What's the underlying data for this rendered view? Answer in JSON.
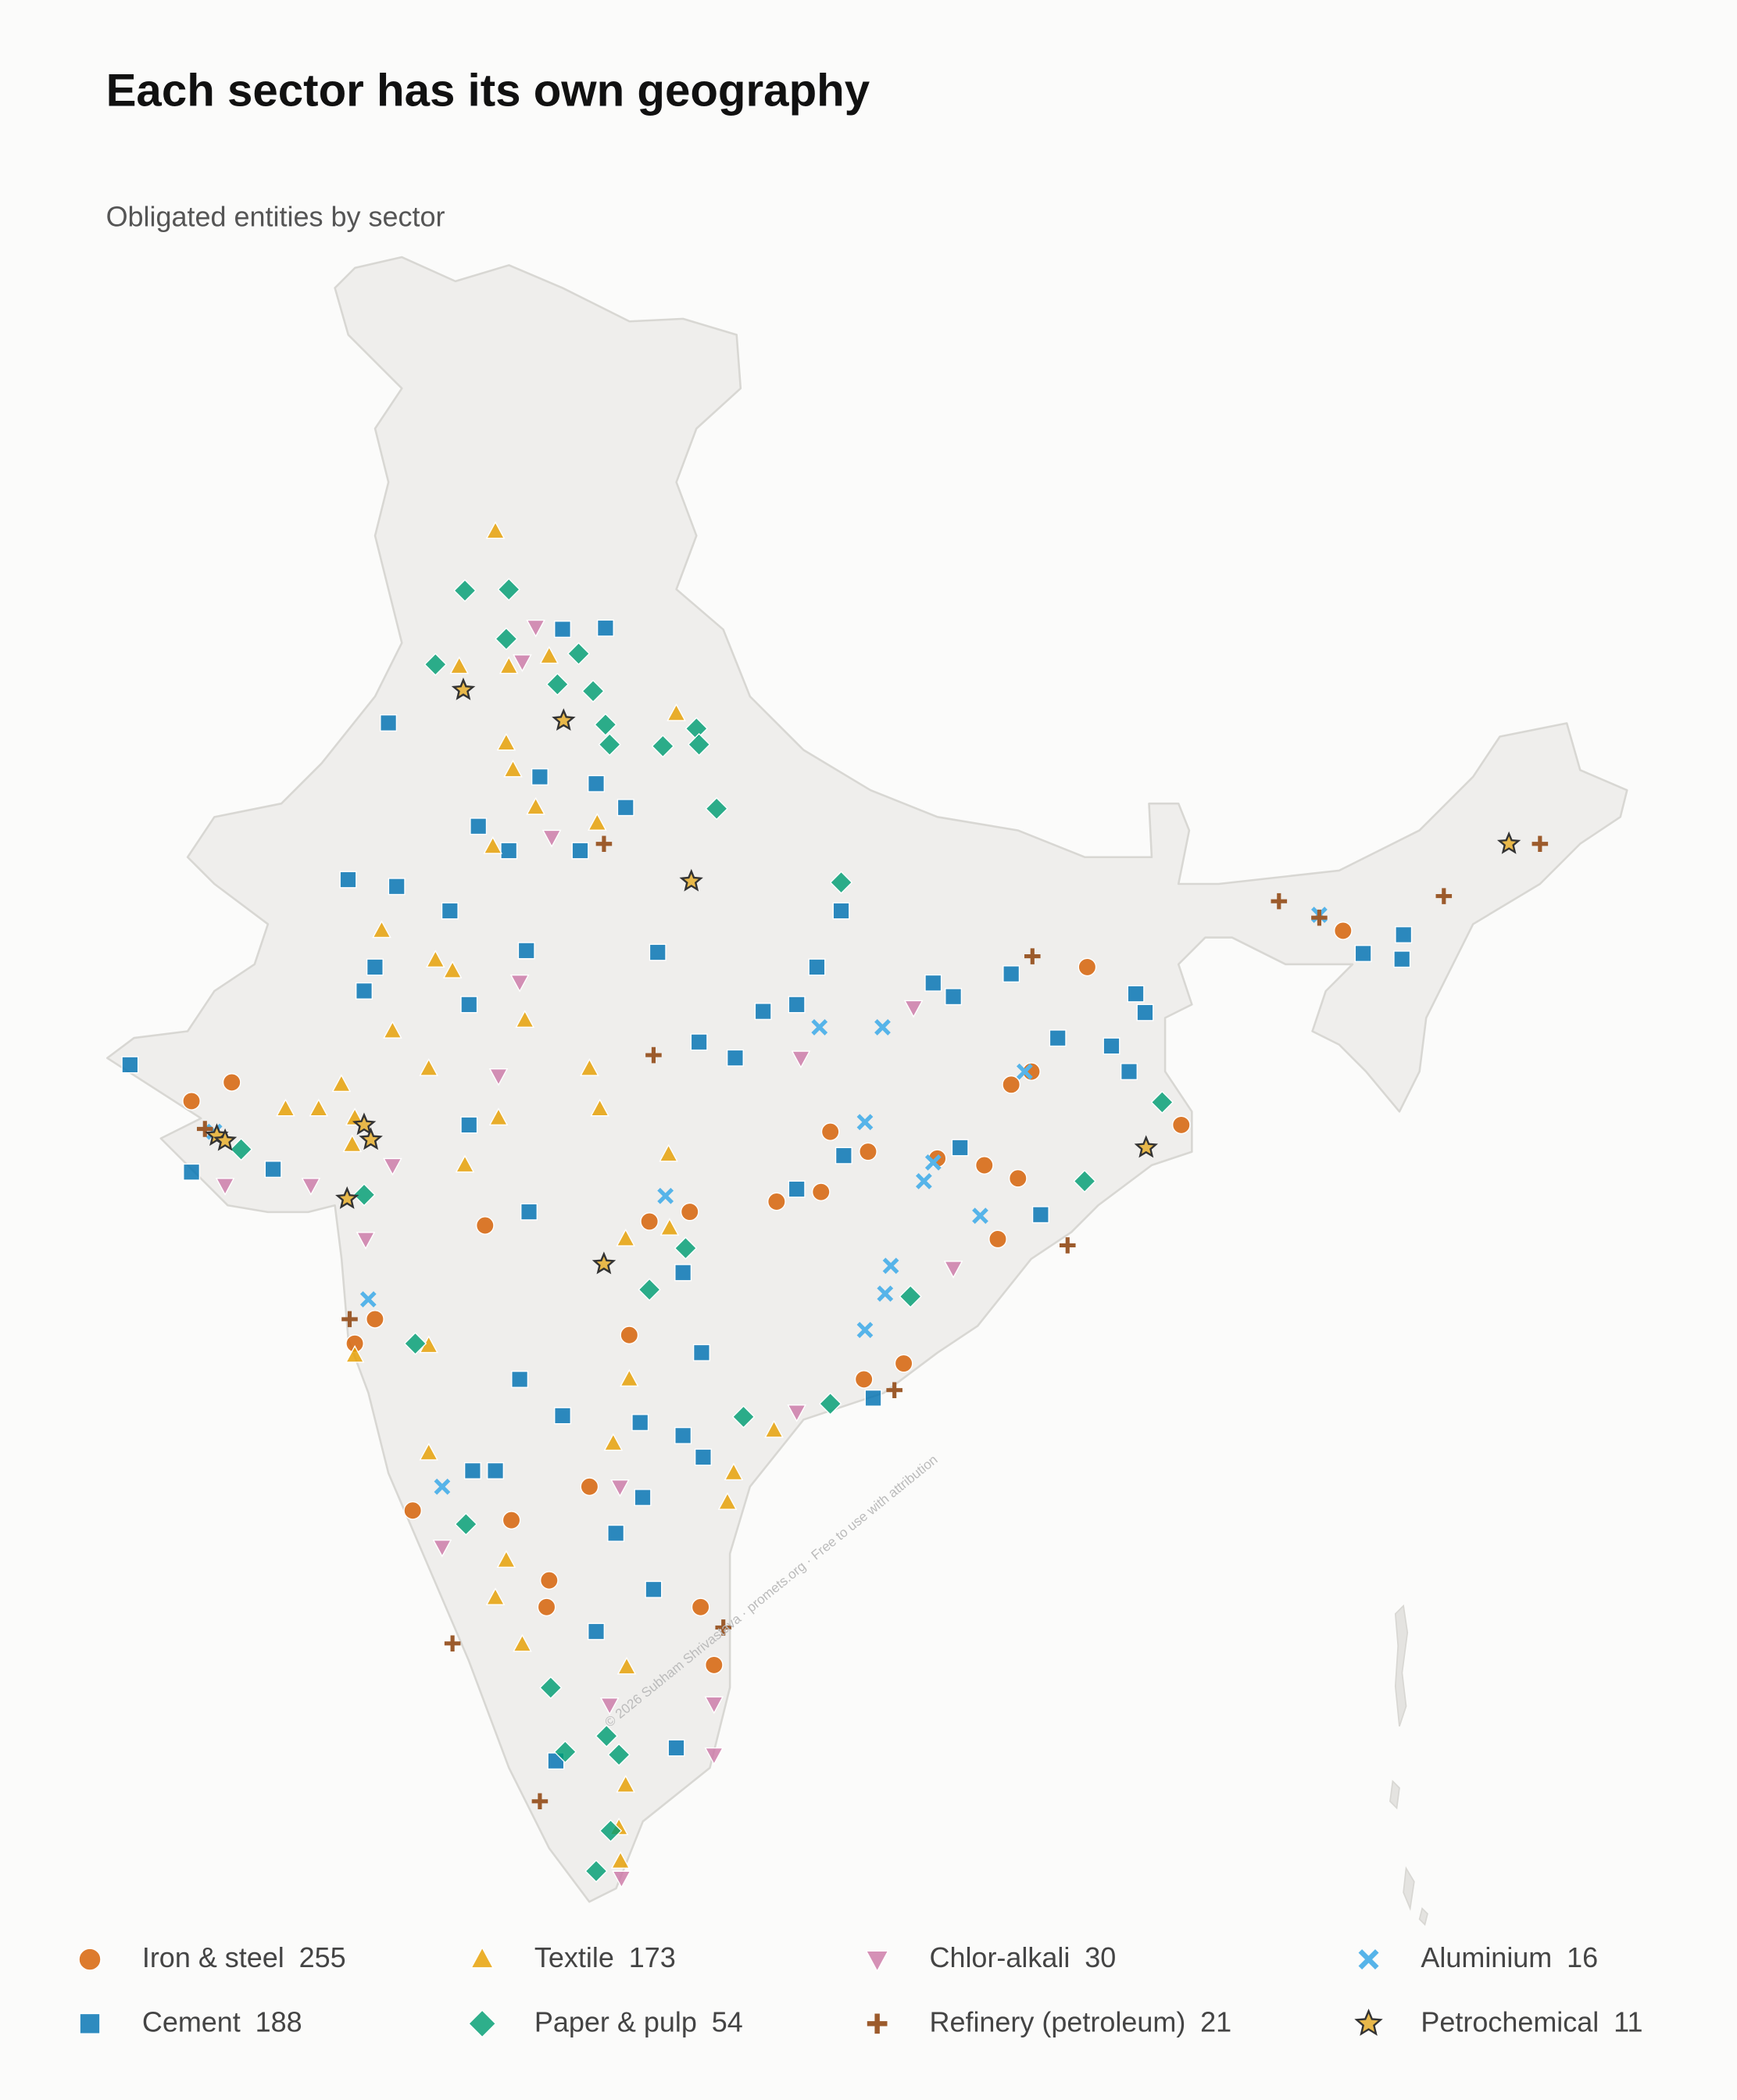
{
  "chart_data": {
    "type": "point-map",
    "title": "Each sector has its own geography",
    "subtitle": "Obligated entities by sector",
    "credit": "© 2026 Subham Shrivastava · promets.org · Free to use with attribution",
    "series": [
      {
        "name": "Iron & steel",
        "count": 255,
        "color": "#d55e00",
        "shape": "circle",
        "lon": [
          70.48,
          69.7,
          75.38,
          82.06,
          82.79,
          84.13,
          85.04,
          85.56,
          85.95,
          85.69,
          85.3,
          81.88,
          81.02,
          78.17,
          78.56,
          79.34,
          73.25,
          72.86,
          73.98,
          75.89,
          77.4,
          76.62,
          76.57,
          79.55,
          79.81,
          82.71,
          83.48,
          87.03,
          88.85,
          91.98
        ],
        "lat": [
          22.53,
          22.2,
          20.01,
          21.66,
          21.31,
          21.19,
          21.07,
          22.49,
          22.72,
          20.84,
          19.77,
          20.6,
          20.43,
          18.08,
          20.08,
          20.25,
          18.36,
          17.93,
          14.99,
          14.82,
          15.41,
          13.76,
          13.29,
          13.29,
          12.27,
          17.3,
          17.58,
          24.56,
          21.78,
          25.2
        ]
      },
      {
        "name": "Cement",
        "count": 188,
        "color": "#0072b2",
        "shape": "square",
        "lon": [
          68.51,
          73.51,
          72.73,
          73.67,
          74.7,
          73.25,
          73.04,
          76.18,
          75.07,
          75.07,
          76.23,
          76.88,
          77.71,
          76.44,
          77.53,
          78.1,
          75.25,
          75.84,
          77.22,
          78.72,
          81.8,
          80.76,
          81.41,
          79.52,
          80.22,
          84.05,
          84.44,
          85.56,
          86.46,
          87.5,
          87.97,
          87.84,
          84.57,
          82.32,
          81.41,
          79.21,
          79.57,
          76.05,
          76.88,
          78.38,
          79.21,
          79.6,
          75.14,
          75.58,
          78.43,
          77.91,
          78.64,
          77.53,
          79.08,
          76.75,
          82.27,
          93.15,
          92.37,
          93.12,
          71.28,
          69.7,
          86.13,
          82.89,
          88.15
        ],
        "lat": [
          22.84,
          28.86,
          26.1,
          25.98,
          25.55,
          24.56,
          24.14,
          24.85,
          23.9,
          21.78,
          20.25,
          30.51,
          30.53,
          27.91,
          27.79,
          27.37,
          27.04,
          26.61,
          26.61,
          24.82,
          24.56,
          23.78,
          23.9,
          23.24,
          22.96,
          24.28,
          24.04,
          24.44,
          23.31,
          23.17,
          24.09,
          22.72,
          21.38,
          21.24,
          20.65,
          19.18,
          17.77,
          17.3,
          16.66,
          16.54,
          16.31,
          15.93,
          15.69,
          15.69,
          15.22,
          14.59,
          13.6,
          12.86,
          10.81,
          10.58,
          25.55,
          25.13,
          24.8,
          24.7,
          21.0,
          20.95,
          20.2,
          16.97,
          23.76
        ]
      },
      {
        "name": "Textile",
        "count": 173,
        "color": "#e69f00",
        "shape": "triangle",
        "lon": [
          75.58,
          74.88,
          75.84,
          76.62,
          79.08,
          75.79,
          75.92,
          76.36,
          75.53,
          77.55,
          73.38,
          74.42,
          74.75,
          73.59,
          74.29,
          76.15,
          75.64,
          77.4,
          77.6,
          72.6,
          71.52,
          72.16,
          72.86,
          72.81,
          74.99,
          78.93,
          78.1,
          78.95,
          74.29,
          72.86,
          78.17,
          77.86,
          74.29,
          80.19,
          80.07,
          75.79,
          75.58,
          76.1,
          78.12,
          78.1,
          77.97,
          78.0,
          80.97
        ],
        "lat": [
          32.23,
          29.85,
          29.85,
          30.03,
          29.02,
          28.5,
          28.03,
          27.37,
          26.68,
          27.09,
          25.2,
          24.68,
          24.49,
          23.43,
          22.77,
          23.62,
          21.9,
          22.77,
          22.06,
          22.49,
          22.06,
          22.06,
          21.9,
          21.43,
          21.07,
          21.26,
          19.77,
          19.96,
          17.89,
          17.72,
          17.3,
          16.17,
          16.0,
          15.65,
          15.13,
          14.11,
          13.45,
          12.63,
          12.23,
          10.15,
          9.4,
          8.81,
          16.4
        ]
      },
      {
        "name": "Chlor-alkali",
        "count": 30,
        "color": "#cc79a7",
        "shape": "triangle-down",
        "lon": [
          76.36,
          76.1,
          76.67,
          76.05,
          75.64,
          73.59,
          72.01,
          70.35,
          73.07,
          81.49,
          83.67,
          84.44,
          81.41,
          77.99,
          74.55,
          79.81,
          79.81,
          78.02,
          77.79
        ],
        "lat": [
          30.55,
          29.94,
          26.85,
          24.3,
          22.65,
          21.07,
          20.72,
          20.72,
          19.77,
          22.96,
          23.85,
          19.26,
          16.73,
          15.41,
          14.35,
          11.59,
          10.69,
          8.52,
          11.57
        ]
      },
      {
        "name": "Aluminium",
        "count": 16,
        "color": "#56b4e9",
        "shape": "x",
        "lon": [
          81.85,
          83.07,
          82.73,
          84.05,
          83.87,
          84.96,
          85.82,
          78.87,
          83.23,
          83.12,
          82.73,
          73.12,
          74.55,
          91.52,
          70.14
        ],
        "lat": [
          23.5,
          23.5,
          21.83,
          21.12,
          20.79,
          20.18,
          22.72,
          20.53,
          19.3,
          18.81,
          18.17,
          18.71,
          15.41,
          25.48,
          21.66
        ]
      },
      {
        "name": "Paper & pulp",
        "count": 54,
        "color": "#009e73",
        "shape": "diamond",
        "lon": [
          74.99,
          75.84,
          75.79,
          74.42,
          77.19,
          76.78,
          77.47,
          77.71,
          77.79,
          78.82,
          79.47,
          79.52,
          79.86,
          82.27,
          88.48,
          86.98,
          82.06,
          80.38,
          83.61,
          78.56,
          79.26,
          74.03,
          75.01,
          70.66,
          73.04,
          76.65,
          76.93,
          77.73,
          77.97,
          77.81,
          77.53
        ],
        "lat": [
          31.19,
          31.21,
          30.34,
          29.89,
          30.08,
          29.54,
          29.42,
          28.83,
          28.48,
          28.45,
          28.76,
          28.48,
          27.35,
          26.05,
          22.18,
          20.79,
          16.87,
          16.64,
          18.76,
          18.88,
          19.61,
          17.93,
          14.75,
          21.35,
          20.55,
          11.87,
          10.74,
          11.02,
          10.69,
          9.35,
          8.64
        ]
      },
      {
        "name": "Refinery (petroleum)",
        "count": 21,
        "color": "#9c5b2c",
        "shape": "plus",
        "lon": [
          77.68,
          78.64,
          85.97,
          90.74,
          93.93,
          95.79,
          69.96,
          72.76,
          83.3,
          86.65,
          79.99,
          74.75,
          76.44,
          91.52
        ],
        "lat": [
          26.73,
          23.01,
          24.75,
          25.72,
          25.81,
          26.73,
          21.71,
          18.36,
          17.11,
          19.66,
          12.93,
          12.65,
          9.87,
          25.43
        ]
      },
      {
        "name": "Petrochemical",
        "count": 11,
        "color": "#e8b84a",
        "shape": "star",
        "lon": [
          74.96,
          76.9,
          79.37,
          73.04,
          73.17,
          72.71,
          77.68,
          88.17,
          95.19,
          70.19,
          70.35
        ],
        "lat": [
          29.44,
          28.9,
          26.07,
          21.78,
          21.52,
          20.48,
          19.33,
          21.38,
          26.73,
          21.59,
          21.5
        ]
      }
    ]
  }
}
